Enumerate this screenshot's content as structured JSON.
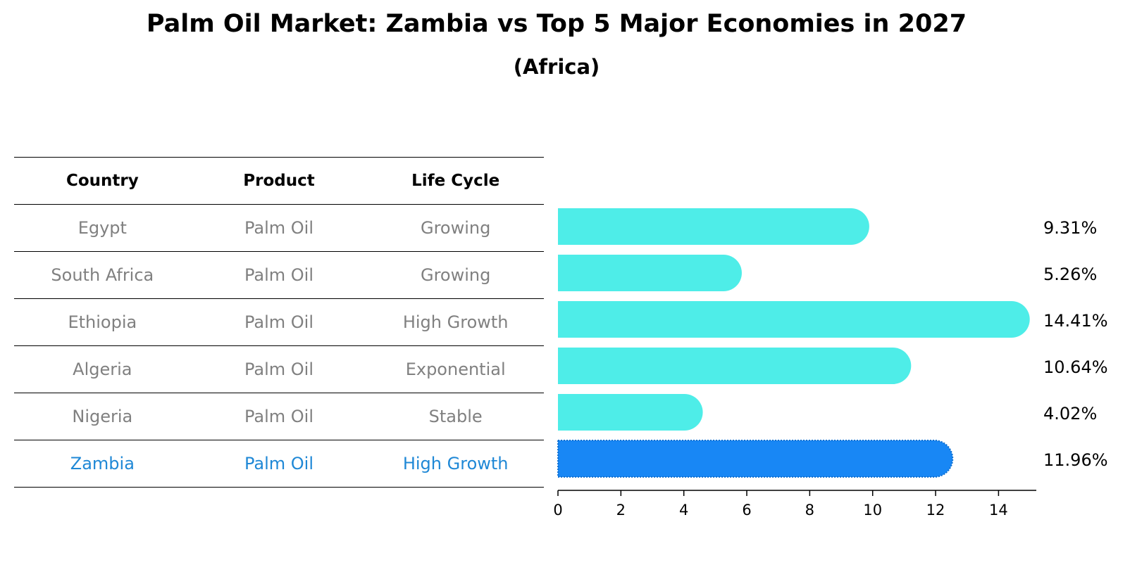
{
  "title": "Palm Oil Market: Zambia vs Top 5 Major Economies in 2027",
  "subtitle": "(Africa)",
  "table": {
    "headers": [
      "Country",
      "Product",
      "Life Cycle"
    ],
    "rows": [
      {
        "country": "Egypt",
        "product": "Palm Oil",
        "life_cycle": "Growing"
      },
      {
        "country": "South Africa",
        "product": "Palm Oil",
        "life_cycle": "Growing"
      },
      {
        "country": "Ethiopia",
        "product": "Palm Oil",
        "life_cycle": "High Growth"
      },
      {
        "country": "Algeria",
        "product": "Palm Oil",
        "life_cycle": "Exponential"
      },
      {
        "country": "Nigeria",
        "product": "Palm Oil",
        "life_cycle": "Stable"
      },
      {
        "country": "Zambia",
        "product": "Palm Oil",
        "life_cycle": "High Growth"
      }
    ]
  },
  "colors": {
    "bar": "#4eede8",
    "highlight_bar": "#1887f5",
    "highlight_text": "#1f88d6",
    "row_text": "#808080"
  },
  "chart_data": {
    "type": "bar",
    "orientation": "horizontal",
    "categories": [
      "Egypt",
      "South Africa",
      "Ethiopia",
      "Algeria",
      "Nigeria",
      "Zambia"
    ],
    "values": [
      9.31,
      5.26,
      14.41,
      10.64,
      4.02,
      11.96
    ],
    "value_labels": [
      "9.31%",
      "5.26%",
      "14.41%",
      "10.64%",
      "4.02%",
      "11.96%"
    ],
    "highlight": "Zambia",
    "xticks": [
      "0",
      "2",
      "4",
      "6",
      "8",
      "10",
      "12",
      "14"
    ],
    "xlim": [
      0,
      15.2
    ],
    "grid": false
  }
}
